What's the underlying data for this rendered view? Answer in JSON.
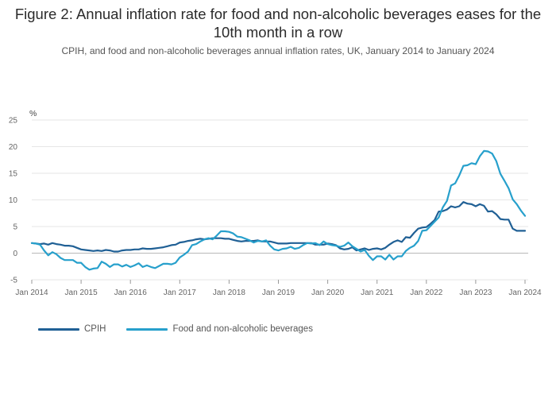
{
  "chart_data": {
    "type": "line",
    "title": "Figure 2: Annual inflation rate for food and non-alcoholic beverages eases for the 10th month in a row",
    "subtitle": "CPIH, and food and non-alcoholic beverages annual inflation rates, UK, January 2014 to January 2024",
    "ylabel": "%",
    "ylim": [
      -5,
      25
    ],
    "yticks": [
      "-5",
      "0",
      "5",
      "10",
      "15",
      "20",
      "25"
    ],
    "xlim": [
      "2014-01",
      "2024-01"
    ],
    "xticks": [
      "Jan 2014",
      "Jan 2015",
      "Jan 2016",
      "Jan 2017",
      "Jan 2018",
      "Jan 2019",
      "Jan 2020",
      "Jan 2021",
      "Jan 2022",
      "Jan 2023",
      "Jan 2024"
    ],
    "grid": true,
    "legend_position": "bottom-left",
    "start": "2014-01",
    "series": [
      {
        "name": "CPIH",
        "color": "#206095",
        "values": [
          1.9,
          1.8,
          1.7,
          1.8,
          1.6,
          1.9,
          1.7,
          1.6,
          1.4,
          1.4,
          1.3,
          1.0,
          0.7,
          0.6,
          0.5,
          0.4,
          0.5,
          0.4,
          0.6,
          0.5,
          0.3,
          0.3,
          0.5,
          0.6,
          0.6,
          0.7,
          0.7,
          0.9,
          0.8,
          0.8,
          0.9,
          1.0,
          1.1,
          1.3,
          1.5,
          1.6,
          2.0,
          2.1,
          2.3,
          2.4,
          2.6,
          2.7,
          2.6,
          2.7,
          2.8,
          2.8,
          2.8,
          2.7,
          2.7,
          2.5,
          2.3,
          2.2,
          2.3,
          2.3,
          2.3,
          2.4,
          2.2,
          2.2,
          2.2,
          2.0,
          1.8,
          1.8,
          1.8,
          1.9,
          1.9,
          1.9,
          1.9,
          1.9,
          1.9,
          1.6,
          1.6,
          1.6,
          1.8,
          1.7,
          1.5,
          0.9,
          0.7,
          0.8,
          1.1,
          0.5,
          0.7,
          0.9,
          0.6,
          0.8,
          0.9,
          0.7,
          1.0,
          1.6,
          2.1,
          2.4,
          2.1,
          3.0,
          2.9,
          3.8,
          4.6,
          4.8,
          4.9,
          5.5,
          6.2,
          7.8,
          7.9,
          8.2,
          8.8,
          8.6,
          8.8,
          9.6,
          9.3,
          9.2,
          8.8,
          9.2,
          8.9,
          7.8,
          7.9,
          7.3,
          6.4,
          6.3,
          6.3,
          4.6,
          4.2,
          4.2,
          4.2
        ],
        "end_marker": "4.2"
      },
      {
        "name": "Food and non-alcoholic beverages",
        "color": "#27a0cc",
        "values": [
          1.9,
          1.8,
          1.6,
          0.5,
          -0.4,
          0.2,
          -0.2,
          -0.9,
          -1.3,
          -1.3,
          -1.3,
          -1.8,
          -1.8,
          -2.6,
          -3.1,
          -2.9,
          -2.8,
          -1.6,
          -2.0,
          -2.6,
          -2.1,
          -2.1,
          -2.5,
          -2.2,
          -2.6,
          -2.3,
          -1.9,
          -2.6,
          -2.3,
          -2.6,
          -2.8,
          -2.4,
          -2.0,
          -2.0,
          -2.1,
          -1.8,
          -0.8,
          -0.3,
          0.3,
          1.5,
          1.7,
          2.2,
          2.6,
          2.8,
          2.6,
          3.3,
          4.1,
          4.1,
          4.0,
          3.7,
          3.1,
          3.0,
          2.7,
          2.4,
          2.0,
          2.3,
          2.2,
          2.4,
          1.4,
          0.7,
          0.5,
          0.8,
          0.9,
          1.2,
          0.8,
          1.0,
          1.5,
          1.9,
          1.8,
          1.9,
          1.5,
          2.2,
          1.7,
          1.5,
          1.4,
          1.2,
          1.4,
          2.0,
          1.3,
          0.8,
          0.3,
          0.6,
          -0.5,
          -1.3,
          -0.6,
          -0.6,
          -1.2,
          -0.3,
          -1.2,
          -0.6,
          -0.6,
          0.4,
          1.0,
          1.4,
          2.3,
          4.2,
          4.3,
          5.1,
          5.9,
          6.7,
          8.6,
          9.8,
          12.7,
          13.1,
          14.6,
          16.4,
          16.5,
          16.9,
          16.7,
          18.2,
          19.2,
          19.1,
          18.7,
          17.3,
          14.9,
          13.6,
          12.2,
          10.1,
          9.2,
          8.0,
          7.0
        ],
        "end_marker": "7.0"
      }
    ]
  }
}
